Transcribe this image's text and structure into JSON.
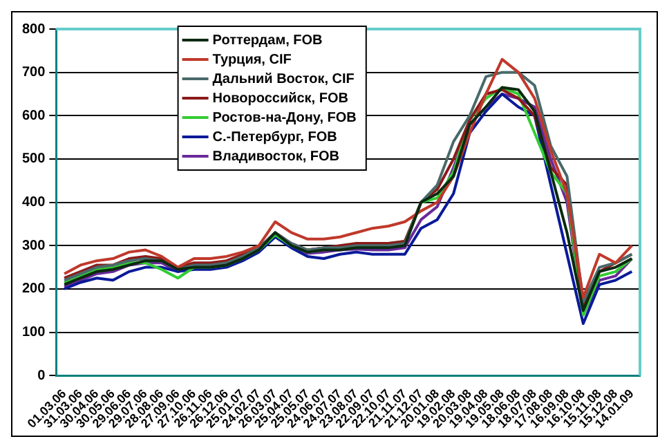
{
  "chart_data": {
    "type": "line",
    "categories": [
      "01.03.06",
      "31.03.06",
      "30.04.06",
      "30.05.06",
      "29.06.06",
      "29.07.06",
      "28.08.06",
      "27.09.06",
      "27.10.06",
      "26.11.06",
      "26.12.06",
      "25.01.07",
      "24.02.07",
      "26.03.07",
      "25.04.07",
      "25.05.07",
      "24.06.07",
      "24.07.07",
      "23.08.07",
      "22.09.07",
      "22.10.07",
      "21.11.07",
      "21.12.07",
      "20.01.08",
      "19.02.08",
      "20.03.08",
      "19.04.08",
      "19.05.08",
      "18.06.08",
      "18.07.08",
      "17.08.08",
      "16.09.08",
      "16.10.08",
      "15.11.08",
      "15.12.08",
      "14.01.09"
    ],
    "series": [
      {
        "name": "Роттердам, FOB",
        "color": "#0a2a10",
        "values": [
          210,
          225,
          240,
          245,
          255,
          265,
          265,
          245,
          250,
          250,
          255,
          270,
          290,
          330,
          300,
          285,
          290,
          290,
          295,
          295,
          295,
          300,
          400,
          420,
          460,
          580,
          620,
          665,
          660,
          610,
          470,
          330,
          150,
          240,
          250,
          270
        ]
      },
      {
        "name": "Турция, CIF",
        "color": "#c0392b",
        "values": [
          235,
          255,
          265,
          270,
          285,
          290,
          275,
          250,
          270,
          270,
          275,
          285,
          300,
          355,
          330,
          315,
          315,
          320,
          330,
          340,
          345,
          355,
          380,
          400,
          460,
          560,
          650,
          730,
          700,
          640,
          520,
          420,
          180,
          280,
          260,
          300
        ]
      },
      {
        "name": "Дальний Восток, CIF",
        "color": "#4a6a6a",
        "values": [
          220,
          235,
          250,
          255,
          265,
          270,
          265,
          245,
          255,
          255,
          260,
          275,
          295,
          330,
          305,
          290,
          295,
          295,
          300,
          300,
          300,
          305,
          400,
          440,
          540,
          600,
          690,
          700,
          700,
          670,
          530,
          460,
          170,
          250,
          260,
          280
        ]
      },
      {
        "name": "Новороссийск, FOB",
        "color": "#8b1a1a",
        "values": [
          225,
          240,
          255,
          255,
          270,
          275,
          270,
          250,
          260,
          260,
          265,
          280,
          295,
          330,
          305,
          290,
          295,
          300,
          305,
          305,
          305,
          310,
          400,
          430,
          500,
          590,
          650,
          660,
          640,
          600,
          480,
          440,
          160,
          240,
          260,
          280
        ]
      },
      {
        "name": "Ростов-на-Дону, FOB",
        "color": "#33cc33",
        "values": [
          215,
          230,
          245,
          250,
          260,
          260,
          245,
          225,
          250,
          250,
          255,
          270,
          290,
          325,
          300,
          285,
          290,
          295,
          300,
          305,
          305,
          310,
          400,
          410,
          470,
          590,
          640,
          665,
          650,
          560,
          470,
          420,
          140,
          230,
          240,
          270
        ]
      },
      {
        "name": "С.-Петербург, FOB",
        "color": "#0a1a99",
        "values": [
          200,
          215,
          225,
          220,
          240,
          250,
          250,
          240,
          245,
          245,
          250,
          265,
          285,
          320,
          295,
          275,
          270,
          280,
          285,
          280,
          280,
          280,
          340,
          360,
          420,
          560,
          610,
          650,
          620,
          600,
          440,
          280,
          120,
          210,
          220,
          240
        ]
      },
      {
        "name": "Владивосток, FOB",
        "color": "#6a2a9a",
        "values": [
          205,
          220,
          235,
          240,
          255,
          260,
          260,
          240,
          250,
          250,
          255,
          268,
          288,
          322,
          298,
          282,
          285,
          290,
          292,
          290,
          290,
          295,
          360,
          390,
          480,
          580,
          620,
          650,
          640,
          620,
          500,
          400,
          140,
          220,
          230,
          270
        ]
      }
    ],
    "ylim": [
      0,
      800
    ],
    "yticks": [
      0,
      100,
      200,
      300,
      400,
      500,
      600,
      700,
      800
    ],
    "grid": "y",
    "legend": "top",
    "marker": "none",
    "line_style": "solid"
  }
}
